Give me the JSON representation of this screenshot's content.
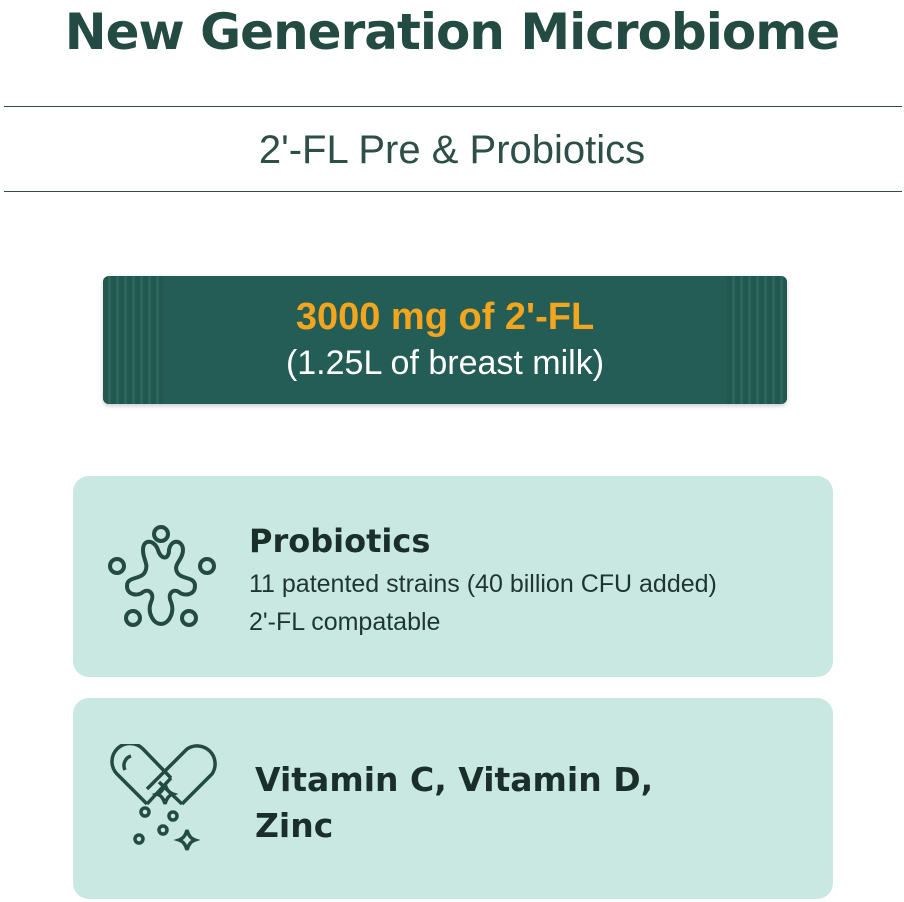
{
  "title": "New Generation Microbiome",
  "subtitle": "2'-FL Pre & Probiotics",
  "stick": {
    "headline": "3000 mg of 2'-FL",
    "note": "(1.25L of breast milk)"
  },
  "cards": [
    {
      "icon": "probiotics-icon",
      "heading": "Probiotics",
      "lines": [
        "11 patented strains (40 billion CFU added)",
        "2'-FL compatable"
      ]
    },
    {
      "icon": "capsule-heart-icon",
      "heading": "Vitamin C, Vitamin D,",
      "heading2": "Zinc"
    }
  ],
  "colors": {
    "primary": "#234b42",
    "stick": "#245d55",
    "accent": "#f2a51d",
    "card": "#c9e8e2"
  }
}
